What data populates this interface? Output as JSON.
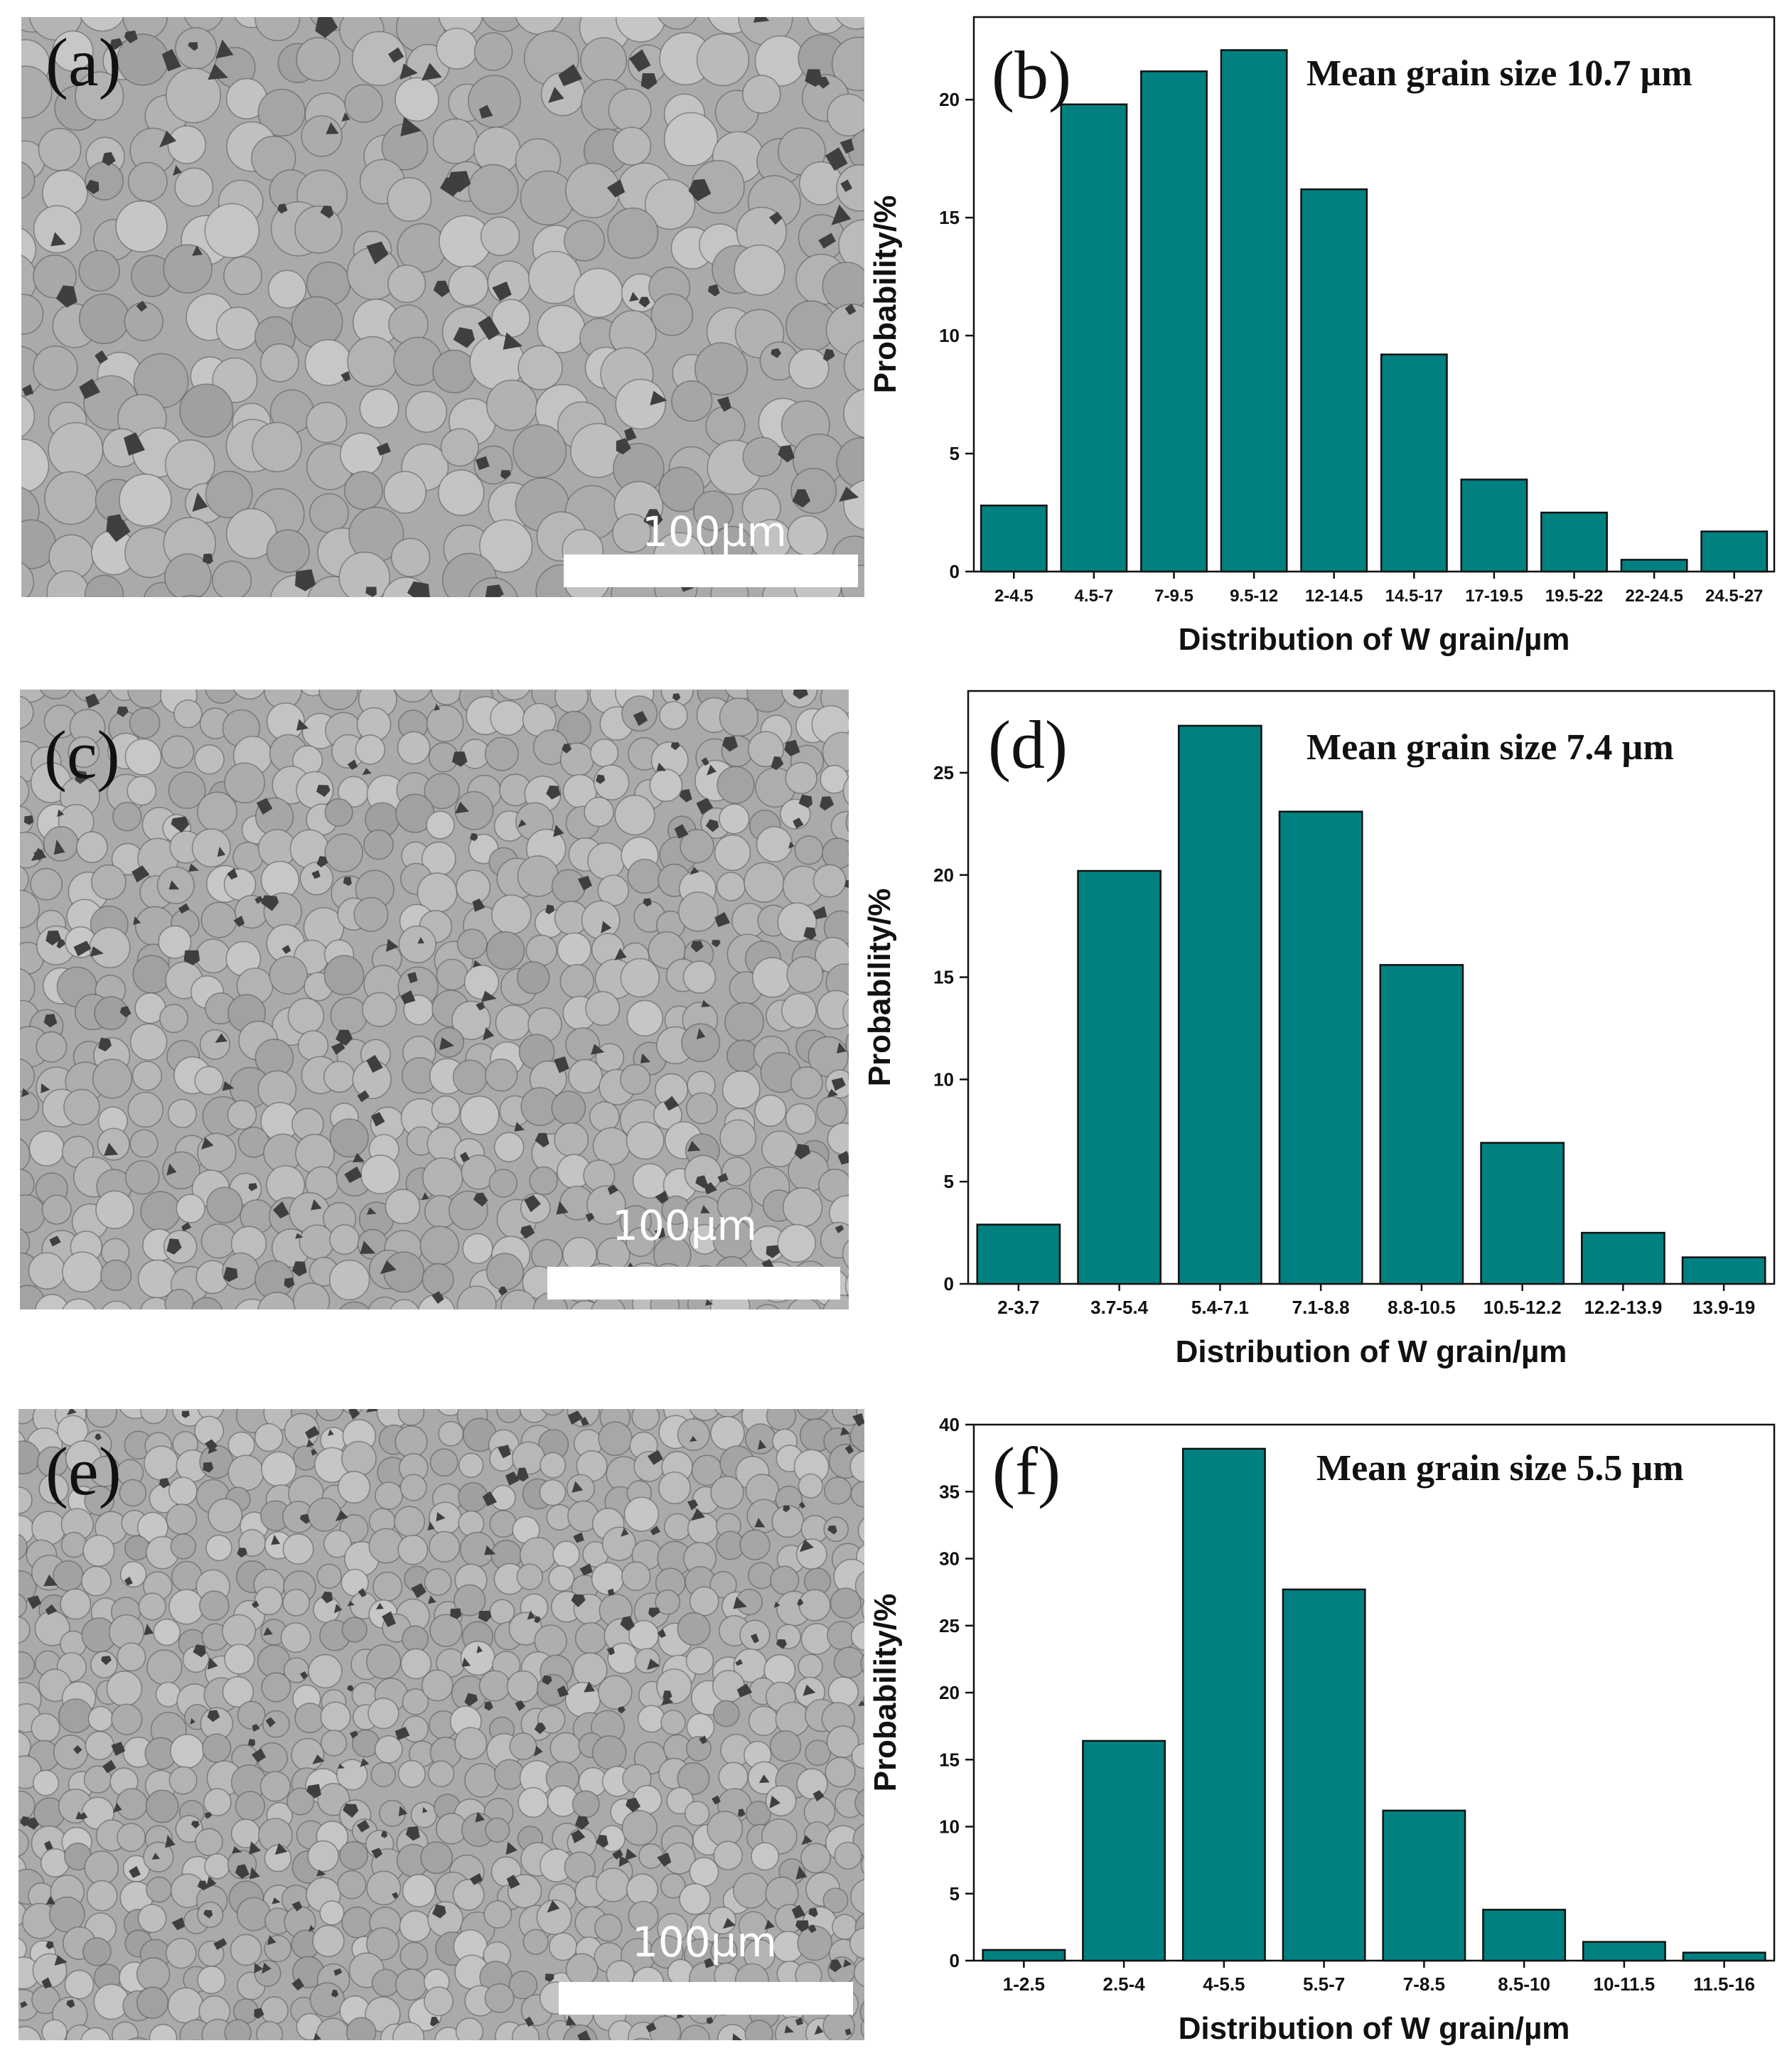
{
  "micrographs": [
    {
      "label": "(a)",
      "scale_text": "100µm"
    },
    {
      "label": "(c)",
      "scale_text": "100µm"
    },
    {
      "label": "(e)",
      "scale_text": "100µm"
    }
  ],
  "chart_data": [
    {
      "type": "bar",
      "panel_label": "(b)",
      "annotation": "Mean grain size 10.7 µm",
      "xlabel": "Distribution of W grain/µm",
      "ylabel": "Probability/%",
      "categories": [
        "2-4.5",
        "4.5-7",
        "7-9.5",
        "9.5-12",
        "12-14.5",
        "14.5-17",
        "17-19.5",
        "19.5-22",
        "22-24.5",
        "24.5-27"
      ],
      "values": [
        2.8,
        19.8,
        21.2,
        22.1,
        16.2,
        9.2,
        3.9,
        2.5,
        0.5,
        1.7
      ],
      "ylim": [
        0,
        23.5
      ],
      "yticks": [
        0,
        5,
        10,
        15,
        20
      ],
      "bar_color": "#008080"
    },
    {
      "type": "bar",
      "panel_label": "(d)",
      "annotation": "Mean grain size 7.4 µm",
      "xlabel": "Distribution of W grain/µm",
      "ylabel": "Probability/%",
      "categories": [
        "2-3.7",
        "3.7-5.4",
        "5.4-7.1",
        "7.1-8.8",
        "8.8-10.5",
        "10.5-12.2",
        "12.2-13.9",
        "13.9-19"
      ],
      "values": [
        2.9,
        20.2,
        27.3,
        23.1,
        15.6,
        6.9,
        2.5,
        1.3
      ],
      "ylim": [
        0,
        29
      ],
      "yticks": [
        0,
        5,
        10,
        15,
        20,
        25
      ],
      "bar_color": "#008080"
    },
    {
      "type": "bar",
      "panel_label": "(f)",
      "annotation": "Mean grain size 5.5 µm",
      "xlabel": "Distribution of W grain/µm",
      "ylabel": "Probability/%",
      "categories": [
        "1-2.5",
        "2.5-4",
        "4-5.5",
        "5.5-7",
        "7-8.5",
        "8.5-10",
        "10-11.5",
        "11.5-16"
      ],
      "values": [
        0.8,
        16.4,
        38.2,
        27.7,
        11.2,
        3.8,
        1.4,
        0.6
      ],
      "ylim": [
        0,
        40
      ],
      "yticks": [
        0,
        5,
        10,
        15,
        20,
        25,
        30,
        35,
        40
      ],
      "bar_color": "#008080"
    }
  ]
}
